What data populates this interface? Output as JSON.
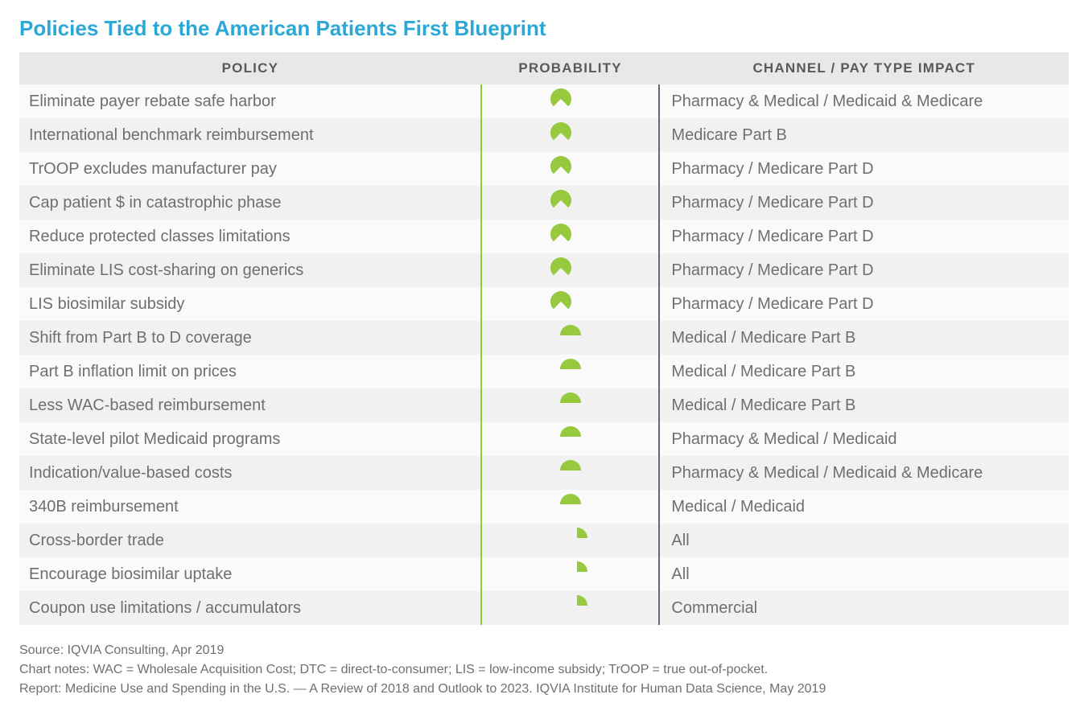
{
  "title": "Policies Tied to the American Patients First Blueprint",
  "columns": {
    "policy": "POLICY",
    "probability": "PROBABILITY",
    "impact": "CHANNEL / PAY TYPE IMPACT"
  },
  "pie": {
    "color": "#96c93d",
    "size": 26
  },
  "rows": [
    {
      "policy": "Eliminate payer rebate safe harbor",
      "prob": 0.75,
      "align": "right",
      "impact": "Pharmacy & Medical / Medicaid & Medicare"
    },
    {
      "policy": "International benchmark reimbursement",
      "prob": 0.75,
      "align": "right",
      "impact": "Medicare Part B"
    },
    {
      "policy": "TrOOP excludes manufacturer pay",
      "prob": 0.75,
      "align": "right",
      "impact": "Pharmacy / Medicare Part D"
    },
    {
      "policy": "Cap patient $ in catastrophic phase",
      "prob": 0.75,
      "align": "right",
      "impact": "Pharmacy / Medicare Part D"
    },
    {
      "policy": "Reduce protected classes limitations",
      "prob": 0.75,
      "align": "right",
      "impact": "Pharmacy / Medicare Part D"
    },
    {
      "policy": "Eliminate LIS cost-sharing on generics",
      "prob": 0.75,
      "align": "right",
      "impact": "Pharmacy / Medicare Part D"
    },
    {
      "policy": "LIS biosimilar subsidy",
      "prob": 0.75,
      "align": "right",
      "impact": "Pharmacy / Medicare Part D"
    },
    {
      "policy": "Shift from Part B to D coverage",
      "prob": 0.5,
      "align": "center",
      "impact": "Medical / Medicare Part B"
    },
    {
      "policy": "Part B inflation limit on prices",
      "prob": 0.5,
      "align": "center",
      "impact": "Medical / Medicare Part B"
    },
    {
      "policy": "Less WAC-based reimbursement",
      "prob": 0.5,
      "align": "center",
      "impact": "Medical / Medicare Part B"
    },
    {
      "policy": "State-level pilot Medicaid programs",
      "prob": 0.5,
      "align": "center",
      "impact": "Pharmacy & Medical / Medicaid"
    },
    {
      "policy": "Indication/value-based costs",
      "prob": 0.5,
      "align": "center",
      "impact": "Pharmacy & Medical / Medicaid & Medicare"
    },
    {
      "policy": "340B reimbursement",
      "prob": 0.5,
      "align": "center",
      "impact": "Medical / Medicaid"
    },
    {
      "policy": "Cross-border trade",
      "prob": 0.25,
      "align": "left",
      "impact": "All"
    },
    {
      "policy": "Encourage biosimilar uptake",
      "prob": 0.25,
      "align": "left",
      "impact": "All"
    },
    {
      "policy": "Coupon use limitations / accumulators",
      "prob": 0.25,
      "align": "left",
      "impact": "Commercial"
    }
  ],
  "footer": {
    "source": "Source: IQVIA Consulting, Apr 2019",
    "notes": "Chart notes: WAC = Wholesale Acquisition Cost; DTC = direct-to-consumer; LIS = low-income subsidy; TrOOP = true out-of-pocket.",
    "report": "Report: Medicine Use and Spending in the U.S. — A Review of 2018 and Outlook to 2023. IQVIA Institute for Human Data Science, May 2019"
  }
}
